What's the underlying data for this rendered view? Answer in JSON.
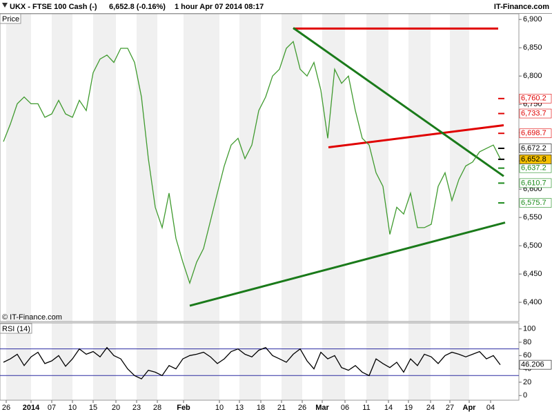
{
  "header": {
    "title": "UKX - FTSE 100 Cash (-)",
    "quote": "6,652.8 (-0.16%)",
    "period": "1 hour  Apr 07 2014 08:17",
    "brand": "IT-Finance.com"
  },
  "chart_data": [
    {
      "type": "line",
      "title": "Price",
      "credit": "© IT-Finance.com",
      "color": "#3f9a2e",
      "values": [
        6684,
        6715,
        6751,
        6763,
        6751,
        6751,
        6727,
        6733,
        6757,
        6733,
        6727,
        6757,
        6739,
        6806,
        6830,
        6837,
        6824,
        6849,
        6849,
        6824,
        6763,
        6654,
        6568,
        6532,
        6593,
        6513,
        6471,
        6434,
        6471,
        6495,
        6544,
        6593,
        6641,
        6678,
        6690,
        6654,
        6678,
        6739,
        6763,
        6800,
        6812,
        6849,
        6861,
        6812,
        6800,
        6824,
        6775,
        6690,
        6812,
        6787,
        6800,
        6739,
        6690,
        6678,
        6629,
        6605,
        6520,
        6568,
        6556,
        6593,
        6532,
        6532,
        6538,
        6605,
        6629,
        6580,
        6617,
        6641,
        6648,
        6666,
        6672,
        6678,
        6654
      ],
      "xlim": [
        -0.5,
        74.7
      ],
      "xticks": [
        {
          "value": 0.4,
          "label": "26"
        },
        {
          "value": 4,
          "label": "2014"
        },
        {
          "value": 7,
          "label": "07"
        },
        {
          "value": 10,
          "label": "10"
        },
        {
          "value": 13,
          "label": "15"
        },
        {
          "value": 16.3,
          "label": "20"
        },
        {
          "value": 19.3,
          "label": "23"
        },
        {
          "value": 22.3,
          "label": "28"
        },
        {
          "value": 26.1,
          "label": "Feb"
        },
        {
          "value": 31.3,
          "label": "10"
        },
        {
          "value": 34.2,
          "label": "13"
        },
        {
          "value": 37.3,
          "label": "18"
        },
        {
          "value": 40.3,
          "label": "21"
        },
        {
          "value": 43.3,
          "label": "26"
        },
        {
          "value": 46.2,
          "label": "Mar"
        },
        {
          "value": 49.5,
          "label": "06"
        },
        {
          "value": 52.6,
          "label": "11"
        },
        {
          "value": 55.8,
          "label": "14"
        },
        {
          "value": 58.7,
          "label": "19"
        },
        {
          "value": 61.9,
          "label": "24"
        },
        {
          "value": 64.7,
          "label": "27"
        },
        {
          "value": 67.5,
          "label": "Apr"
        },
        {
          "value": 70.6,
          "label": "04"
        }
      ],
      "ylim": [
        6366,
        6910
      ],
      "yticks": [
        {
          "value": 6400,
          "label": "6,400"
        },
        {
          "value": 6450,
          "label": "6,450"
        },
        {
          "value": 6500,
          "label": "6,500"
        },
        {
          "value": 6550,
          "label": "6,550"
        },
        {
          "value": 6600,
          "label": "6,600"
        },
        {
          "value": 6650,
          "label": "6,650"
        },
        {
          "value": 6700,
          "label": "6,700"
        },
        {
          "value": 6750,
          "label": "6,750"
        },
        {
          "value": 6800,
          "label": "6,800"
        },
        {
          "value": 6850,
          "label": "6,850"
        },
        {
          "value": 6900,
          "label": "6,900"
        }
      ],
      "levels": [
        {
          "value": 6760.2,
          "label": "6,760.2",
          "color": "#e00000"
        },
        {
          "value": 6733.7,
          "label": "6,733.7",
          "color": "#e00000"
        },
        {
          "value": 6698.7,
          "label": "6,698.7",
          "color": "#e00000"
        },
        {
          "value": 6672.2,
          "label": "6,672.2",
          "color": "#000000"
        },
        {
          "value": 6637.2,
          "label": "6,637.2",
          "color": "#1a8a1a"
        },
        {
          "value": 6610.7,
          "label": "6,610.7",
          "color": "#1a8a1a"
        },
        {
          "value": 6575.7,
          "label": "6,575.7",
          "color": "#1a8a1a"
        },
        {
          "value": 6652.8,
          "label": "6,652.8",
          "color": "#000000",
          "background": "#f5c000"
        }
      ],
      "trendlines": [
        {
          "x": [
            42,
            71.7
          ],
          "y": [
            6884,
            6884
          ],
          "color": "#e00000"
        },
        {
          "x": [
            47.1,
            72.5
          ],
          "y": [
            6674,
            6713
          ],
          "color": "#e00000"
        },
        {
          "x": [
            42,
            72.5
          ],
          "y": [
            6885,
            6623
          ],
          "color": "#1a7a1a"
        },
        {
          "x": [
            27,
            72.7
          ],
          "y": [
            6394,
            6541
          ],
          "color": "#1a7a1a"
        }
      ]
    },
    {
      "type": "line",
      "title": "RSI (14)",
      "color": "#000000",
      "values": [
        50,
        55,
        62,
        45,
        58,
        65,
        48,
        52,
        60,
        44,
        55,
        70,
        62,
        66,
        58,
        72,
        60,
        55,
        40,
        30,
        25,
        38,
        35,
        30,
        45,
        40,
        55,
        60,
        62,
        65,
        58,
        48,
        55,
        66,
        70,
        62,
        58,
        68,
        72,
        60,
        55,
        50,
        62,
        70,
        52,
        40,
        65,
        55,
        60,
        42,
        38,
        45,
        35,
        30,
        55,
        48,
        42,
        50,
        35,
        55,
        45,
        62,
        58,
        48,
        60,
        65,
        62,
        58,
        62,
        66,
        55,
        60,
        46.206
      ],
      "value_label": "46.206",
      "ylim": [
        -7,
        109
      ],
      "yticks": [
        0,
        20,
        40,
        60,
        80,
        100
      ],
      "bands": [
        30,
        70
      ],
      "band_color": "#2a2aa0"
    }
  ]
}
